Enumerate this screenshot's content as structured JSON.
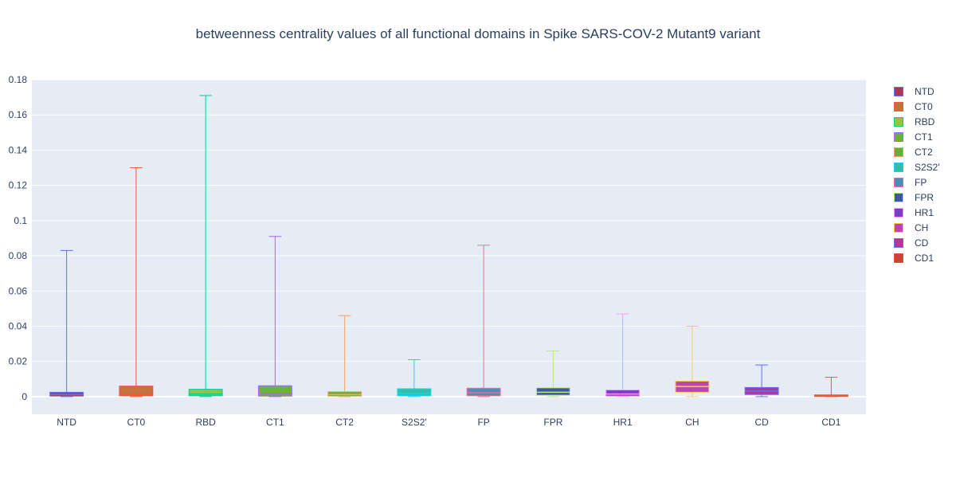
{
  "chart_data": {
    "type": "box",
    "title": "betweenness centrality values of all functional domains in Spike SARS-COV-2 Mutant9 variant",
    "xlabel": "",
    "ylabel": "",
    "ylim": [
      -0.01,
      0.18
    ],
    "yticks": [
      0,
      0.02,
      0.04,
      0.06,
      0.08,
      0.1,
      0.12,
      0.14,
      0.16,
      0.18
    ],
    "ytick_labels": [
      "0",
      "0.02",
      "0.04",
      "0.06",
      "0.08",
      "0.1",
      "0.12",
      "0.14",
      "0.16",
      "0.18"
    ],
    "grid": true,
    "legend_position": "right",
    "categories": [
      "NTD",
      "CT0",
      "RBD",
      "CT1",
      "CT2",
      "S2S2'",
      "FP",
      "FPR",
      "HR1",
      "CH",
      "CD",
      "CD1"
    ],
    "series": [
      {
        "name": "NTD",
        "min": 0,
        "q1": 0.0003,
        "median": 0.0012,
        "q3": 0.0025,
        "max": 0.083,
        "fill": "#a93952",
        "line": "#636efa"
      },
      {
        "name": "CT0",
        "min": 0,
        "q1": 0.0005,
        "median": 0.0015,
        "q3": 0.006,
        "max": 0.13,
        "fill": "#c5733d",
        "line": "#ef553b"
      },
      {
        "name": "RBD",
        "min": 0,
        "q1": 0.0005,
        "median": 0.0015,
        "q3": 0.0042,
        "max": 0.171,
        "fill": "#9bc13a",
        "line": "#00cc96"
      },
      {
        "name": "CT1",
        "min": 0,
        "q1": 0.0003,
        "median": 0.0018,
        "q3": 0.0062,
        "max": 0.091,
        "fill": "#6bb33e",
        "line": "#ab63fa"
      },
      {
        "name": "CT2",
        "min": 0,
        "q1": 0.0003,
        "median": 0.0012,
        "q3": 0.0028,
        "max": 0.046,
        "fill": "#5ab23e",
        "line": "#ffa15a"
      },
      {
        "name": "S2S2'",
        "min": 0,
        "q1": 0.0005,
        "median": 0.0018,
        "q3": 0.0045,
        "max": 0.021,
        "fill": "#36bea4",
        "line": "#19d3f3"
      },
      {
        "name": "FP",
        "min": 0,
        "q1": 0.0005,
        "median": 0.0022,
        "q3": 0.0048,
        "max": 0.086,
        "fill": "#4b8fb6",
        "line": "#ff6692"
      },
      {
        "name": "FPR",
        "min": 0,
        "q1": 0.0008,
        "median": 0.0025,
        "q3": 0.005,
        "max": 0.026,
        "fill": "#3e55a8",
        "line": "#b6e880"
      },
      {
        "name": "HR1",
        "min": 0,
        "q1": 0.0003,
        "median": 0.0015,
        "q3": 0.0038,
        "max": 0.047,
        "fill": "#7a3ec8",
        "line": "#ff97ff"
      },
      {
        "name": "CH",
        "min": 0,
        "q1": 0.0025,
        "median": 0.0058,
        "q3": 0.0088,
        "max": 0.04,
        "fill": "#bc45b5",
        "line": "#fecb52"
      },
      {
        "name": "CD",
        "min": 0,
        "q1": 0.0012,
        "median": 0.0032,
        "q3": 0.0052,
        "max": 0.018,
        "fill": "#b0389a",
        "line": "#636efa"
      },
      {
        "name": "CD1",
        "min": 0,
        "q1": 0.0001,
        "median": 0.0005,
        "q3": 0.001,
        "max": 0.011,
        "fill": "#c8443b",
        "line": "#ef553b"
      }
    ]
  }
}
